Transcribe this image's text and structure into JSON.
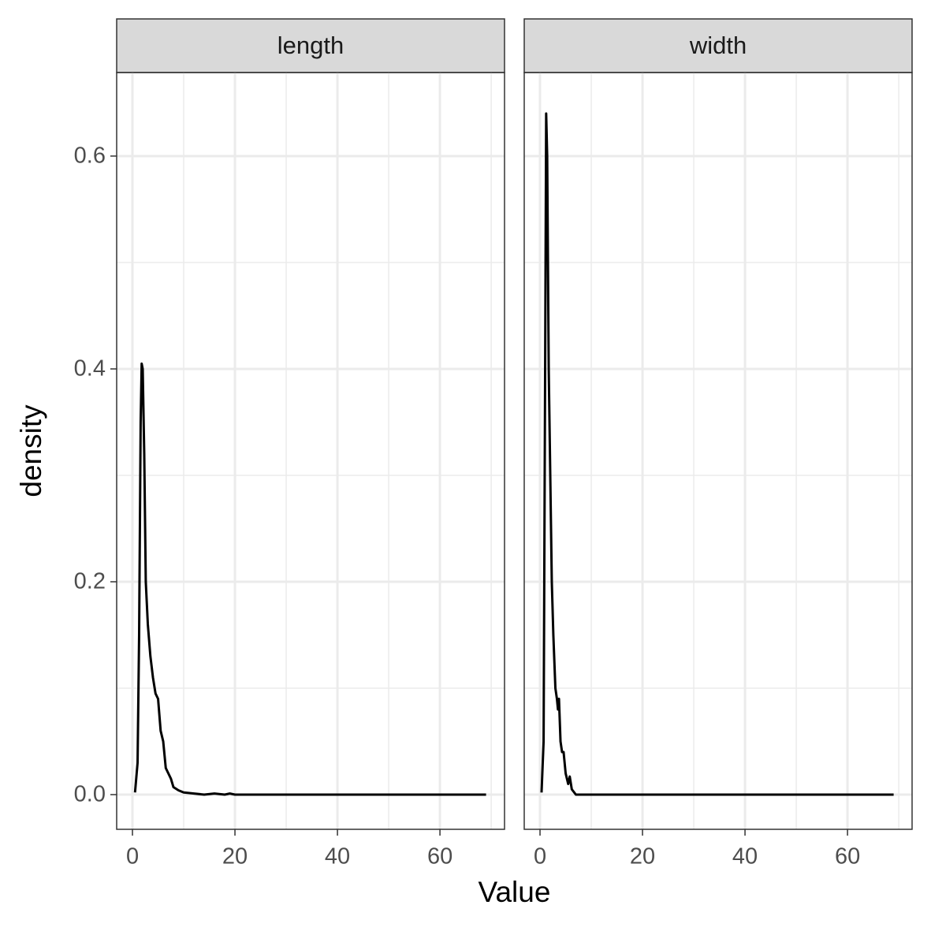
{
  "chart_data": [
    {
      "type": "line",
      "title": "length",
      "xlabel": "Value",
      "ylabel": "density",
      "color": "#000000",
      "x": [
        0.5,
        1,
        1.3,
        1.6,
        1.8,
        2.0,
        2.3,
        2.6,
        3,
        3.5,
        4,
        4.5,
        5,
        5.5,
        6,
        6.5,
        7,
        7.5,
        8,
        9,
        10,
        12,
        14,
        16,
        18,
        19,
        20,
        30,
        40,
        50,
        60,
        69
      ],
      "values": [
        0.002,
        0.03,
        0.15,
        0.35,
        0.405,
        0.4,
        0.32,
        0.2,
        0.16,
        0.13,
        0.11,
        0.095,
        0.09,
        0.06,
        0.05,
        0.025,
        0.02,
        0.015,
        0.007,
        0.004,
        0.002,
        0.001,
        0,
        0.001,
        0,
        0.001,
        0,
        0,
        0,
        0,
        0,
        0
      ],
      "xlim": [
        -3.08,
        72.6
      ],
      "ylim": [
        -0.0326,
        0.6785
      ],
      "xticks": [
        0,
        20,
        40,
        60
      ],
      "yticks": [
        0.0,
        0.2,
        0.4,
        0.6
      ],
      "x_minor_ticks": [
        10,
        30,
        50,
        70
      ],
      "y_minor_ticks": [
        0.1,
        0.3,
        0.5
      ],
      "grid": true
    },
    {
      "type": "line",
      "title": "width",
      "color": "#000000",
      "x": [
        0.3,
        0.7,
        1.0,
        1.2,
        1.4,
        1.7,
        2,
        2.3,
        2.6,
        3,
        3.3,
        3.5,
        3.7,
        4,
        4.3,
        4.6,
        5,
        5.5,
        5.8,
        6.2,
        7,
        10,
        20,
        30,
        40,
        50,
        60,
        69
      ],
      "values": [
        0.002,
        0.05,
        0.4,
        0.64,
        0.6,
        0.4,
        0.3,
        0.2,
        0.15,
        0.1,
        0.09,
        0.08,
        0.09,
        0.05,
        0.04,
        0.04,
        0.02,
        0.01,
        0.017,
        0.005,
        0,
        0,
        0,
        0,
        0,
        0,
        0,
        0
      ],
      "xlim": [
        -3.08,
        72.6
      ],
      "ylim": [
        -0.0326,
        0.6785
      ],
      "xticks": [
        0,
        20,
        40,
        60
      ],
      "yticks": [
        0.0,
        0.2,
        0.4,
        0.6
      ],
      "x_minor_ticks": [
        10,
        30,
        50,
        70
      ],
      "y_minor_ticks": [
        0.1,
        0.3,
        0.5
      ],
      "grid": true
    }
  ]
}
